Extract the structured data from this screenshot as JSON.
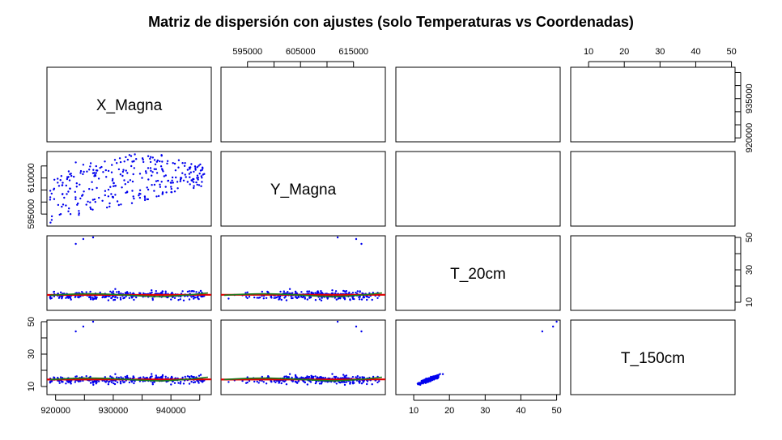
{
  "chart_data": {
    "type": "scatter",
    "title": "Matriz de dispersión con ajustes (solo Temperaturas vs Coordenadas)",
    "variables": [
      "X_Magna",
      "Y_Magna",
      "T_20cm",
      "T_150cm"
    ],
    "axes": {
      "X_Magna": {
        "range": [
          918500,
          947000
        ],
        "ticks": [
          920000,
          930000,
          940000
        ],
        "tick_labels": [
          "920000",
          "930000",
          "940000"
        ],
        "right_axis_ticks": [
          920000,
          935000
        ],
        "right_axis_labels": [
          "920000",
          "935000"
        ]
      },
      "Y_Magna": {
        "range": [
          590000,
          621000
        ],
        "ticks": [
          595000,
          605000,
          615000
        ],
        "tick_labels": [
          "595000",
          "605000",
          "615000"
        ],
        "left_axis_ticks": [
          595000,
          610000
        ],
        "left_axis_labels": [
          "595000",
          "610000"
        ]
      },
      "T_20cm": {
        "range": [
          5,
          51
        ],
        "ticks": [
          10,
          30,
          50
        ],
        "tick_labels": [
          "10",
          "30",
          "50"
        ],
        "bottom_axis_ticks": [
          10,
          20,
          30,
          40,
          50
        ],
        "bottom_axis_labels": [
          "10",
          "20",
          "30",
          "40",
          "50"
        ]
      },
      "T_150cm": {
        "range": [
          5,
          51
        ],
        "ticks": [
          10,
          30,
          50
        ],
        "tick_labels": [
          "10",
          "30",
          "50"
        ],
        "top_axis_ticks": [
          10,
          20,
          30,
          40,
          50
        ],
        "top_axis_labels": [
          "10",
          "20",
          "30",
          "40",
          "50"
        ]
      }
    },
    "panels_with_points": [
      {
        "x": "X_Magna",
        "y": "Y_Magna",
        "fits": []
      },
      {
        "x": "X_Magna",
        "y": "T_20cm",
        "fits": [
          "linear",
          "smooth"
        ]
      },
      {
        "x": "Y_Magna",
        "y": "T_20cm",
        "fits": [
          "linear",
          "smooth"
        ]
      },
      {
        "x": "X_Magna",
        "y": "T_150cm",
        "fits": [
          "linear",
          "smooth"
        ]
      },
      {
        "x": "Y_Magna",
        "y": "T_150cm",
        "fits": [
          "linear",
          "smooth"
        ]
      },
      {
        "x": "T_20cm",
        "y": "T_150cm",
        "fits": []
      }
    ],
    "approx_points": {
      "n": 300,
      "X_Magna_range": [
        919000,
        946000
      ],
      "Y_Magna_range": [
        591000,
        620000
      ],
      "T_20cm_typical_range": [
        8,
        20
      ],
      "T_150cm_typical_range": [
        8,
        19
      ],
      "outliers": [
        {
          "X_Magna": 923500,
          "Y_Magna": 616500,
          "T_20cm": 46,
          "T_150cm": 44
        },
        {
          "X_Magna": 924800,
          "Y_Magna": 615500,
          "T_20cm": 49,
          "T_150cm": 47
        },
        {
          "X_Magna": 926500,
          "Y_Magna": 612000,
          "T_20cm": 50,
          "T_150cm": 50
        }
      ]
    },
    "fits": {
      "linear": {
        "color": "#dd0000",
        "X_Magna_T_20cm": [
          14.5,
          14.6
        ],
        "Y_Magna_T_20cm": [
          14.6,
          14.6
        ],
        "X_Magna_T_150cm": [
          14.3,
          14.4
        ],
        "Y_Magna_T_150cm": [
          14.3,
          14.4
        ]
      },
      "smooth": {
        "color": "#1a7a1a"
      }
    },
    "colors": {
      "points": "#0000ee",
      "linear_fit": "#dd0000",
      "smooth_fit": "#1a7a1a",
      "frame": "#000000"
    }
  }
}
